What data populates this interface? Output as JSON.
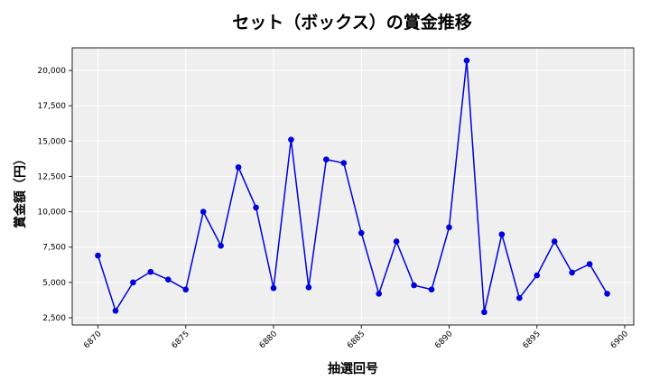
{
  "chart_data": {
    "type": "line",
    "title": "セット（ボックス）の賞金推移",
    "xlabel": "抽選回号",
    "ylabel": "賞金額（円）",
    "x": [
      6870,
      6871,
      6872,
      6873,
      6874,
      6875,
      6876,
      6877,
      6878,
      6879,
      6880,
      6881,
      6882,
      6883,
      6884,
      6885,
      6886,
      6887,
      6888,
      6889,
      6890,
      6891,
      6892,
      6893,
      6894,
      6895,
      6896,
      6897,
      6898,
      6899
    ],
    "series": [
      {
        "name": "セット（ボックス）",
        "color": "#0000dd",
        "marker": "circle",
        "values": [
          6900,
          3000,
          5000,
          5750,
          5200,
          4500,
          10000,
          7600,
          13150,
          10300,
          4600,
          15100,
          4650,
          13700,
          13450,
          8500,
          4200,
          7900,
          4800,
          4500,
          8900,
          20700,
          2900,
          8400,
          3900,
          5500,
          7900,
          5700,
          6300,
          4200
        ]
      }
    ],
    "xticks": [
      6870,
      6875,
      6880,
      6885,
      6890,
      6895,
      6900
    ],
    "yticks": [
      2500,
      5000,
      7500,
      10000,
      12500,
      15000,
      17500,
      20000
    ],
    "ytick_labels": [
      "2,500",
      "5,000",
      "7,500",
      "10,000",
      "12,500",
      "15,000",
      "17,500",
      "20,000"
    ],
    "xlim": [
      6868.5,
      6900.5
    ],
    "ylim": [
      2000,
      21600
    ],
    "grid": true,
    "background": "#efefef",
    "legend": null
  }
}
